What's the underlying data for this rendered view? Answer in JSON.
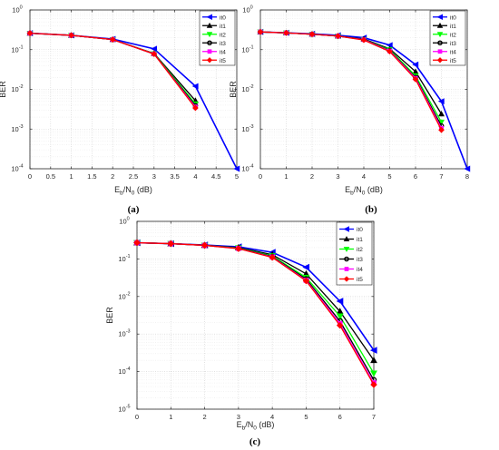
{
  "figure": {
    "panel_labels": [
      "(a)",
      "(b)",
      "(c)"
    ]
  },
  "chart_data": [
    {
      "type": "line",
      "panel": "(a)",
      "title": "",
      "xlabel": "E_b/N_0 (dB)",
      "xlabel_parts": {
        "E": "E",
        "b": "b",
        "slash_N": "/N",
        "zero": "0",
        "unit": " (dB)"
      },
      "ylabel": "BER",
      "xlim": [
        0,
        5
      ],
      "ylim": [
        0.0001,
        1
      ],
      "yscale": "log",
      "xticks": [
        0,
        0.5,
        1,
        1.5,
        2,
        2.5,
        3,
        3.5,
        4,
        4.5,
        5
      ],
      "xtick_labels": [
        "0",
        "0.5",
        "1",
        "1.5",
        "2",
        "2.5",
        "3",
        "3.5",
        "4",
        "4.5",
        "5"
      ],
      "yticks": [
        0.0001,
        0.001,
        0.01,
        0.1,
        1
      ],
      "ytick_labels": [
        {
          "base": "10",
          "exp": "-4"
        },
        {
          "base": "10",
          "exp": "-3"
        },
        {
          "base": "10",
          "exp": "-2"
        },
        {
          "base": "10",
          "exp": "-1"
        },
        {
          "base": "10",
          "exp": "0"
        }
      ],
      "grid": true,
      "legend_position": "top-right",
      "series": [
        {
          "name": "it0",
          "color": "#0000ff",
          "marker": "triangle-left",
          "x": [
            0,
            1,
            2,
            3,
            4,
            5
          ],
          "y": [
            0.26,
            0.23,
            0.185,
            0.105,
            0.012,
            0.0001
          ]
        },
        {
          "name": "it1",
          "color": "#000000",
          "marker": "triangle-up",
          "x": [
            0,
            1,
            2,
            3,
            4
          ],
          "y": [
            0.26,
            0.23,
            0.18,
            0.08,
            0.0052
          ]
        },
        {
          "name": "it2",
          "color": "#00ff00",
          "marker": "triangle-down",
          "x": [
            0,
            1,
            2,
            3,
            4
          ],
          "y": [
            0.26,
            0.23,
            0.18,
            0.079,
            0.0043
          ]
        },
        {
          "name": "it3",
          "color": "#000000",
          "marker": "circle",
          "x": [
            0,
            1,
            2,
            3,
            4
          ],
          "y": [
            0.26,
            0.23,
            0.18,
            0.078,
            0.0039
          ]
        },
        {
          "name": "it4",
          "color": "#ff00ff",
          "marker": "square",
          "x": [
            0,
            1,
            2,
            3,
            4
          ],
          "y": [
            0.26,
            0.23,
            0.18,
            0.078,
            0.0036
          ]
        },
        {
          "name": "it5",
          "color": "#ff0000",
          "marker": "diamond",
          "x": [
            0,
            1,
            2,
            3,
            4
          ],
          "y": [
            0.26,
            0.23,
            0.18,
            0.078,
            0.0034
          ]
        }
      ]
    },
    {
      "type": "line",
      "panel": "(b)",
      "title": "",
      "xlabel": "E_b/N_0 (dB)",
      "xlabel_parts": {
        "E": "E",
        "b": "b",
        "slash_N": "/N",
        "zero": "0",
        "unit": " (dB)"
      },
      "ylabel": "BER",
      "xlim": [
        0,
        8
      ],
      "ylim": [
        0.0001,
        1
      ],
      "yscale": "log",
      "xticks": [
        0,
        1,
        2,
        3,
        4,
        5,
        6,
        7,
        8
      ],
      "xtick_labels": [
        "0",
        "1",
        "2",
        "3",
        "4",
        "5",
        "6",
        "7",
        "8"
      ],
      "yticks": [
        0.0001,
        0.001,
        0.01,
        0.1,
        1
      ],
      "ytick_labels": [
        {
          "base": "10",
          "exp": "-4"
        },
        {
          "base": "10",
          "exp": "-3"
        },
        {
          "base": "10",
          "exp": "-2"
        },
        {
          "base": "10",
          "exp": "-1"
        },
        {
          "base": "10",
          "exp": "0"
        }
      ],
      "grid": true,
      "legend_position": "top-right",
      "series": [
        {
          "name": "it0",
          "color": "#0000ff",
          "marker": "triangle-left",
          "x": [
            0,
            1,
            2,
            3,
            4,
            5,
            6,
            7,
            8
          ],
          "y": [
            0.28,
            0.265,
            0.25,
            0.23,
            0.2,
            0.13,
            0.042,
            0.005,
            0.0001
          ]
        },
        {
          "name": "it1",
          "color": "#000000",
          "marker": "triangle-up",
          "x": [
            0,
            1,
            2,
            3,
            4,
            5,
            6,
            7
          ],
          "y": [
            0.28,
            0.265,
            0.245,
            0.22,
            0.185,
            0.105,
            0.028,
            0.0024
          ]
        },
        {
          "name": "it2",
          "color": "#00ff00",
          "marker": "triangle-down",
          "x": [
            0,
            1,
            2,
            3,
            4,
            5,
            6,
            7
          ],
          "y": [
            0.28,
            0.265,
            0.245,
            0.22,
            0.18,
            0.1,
            0.022,
            0.0015
          ]
        },
        {
          "name": "it3",
          "color": "#000000",
          "marker": "circle",
          "x": [
            0,
            1,
            2,
            3,
            4,
            5,
            6,
            7
          ],
          "y": [
            0.28,
            0.265,
            0.245,
            0.22,
            0.18,
            0.095,
            0.02,
            0.0012
          ]
        },
        {
          "name": "it4",
          "color": "#ff00ff",
          "marker": "square",
          "x": [
            0,
            1,
            2,
            3,
            4,
            5,
            6,
            7
          ],
          "y": [
            0.28,
            0.265,
            0.245,
            0.22,
            0.178,
            0.093,
            0.019,
            0.00105
          ]
        },
        {
          "name": "it5",
          "color": "#ff0000",
          "marker": "diamond",
          "x": [
            0,
            1,
            2,
            3,
            4,
            5,
            6,
            7
          ],
          "y": [
            0.28,
            0.265,
            0.245,
            0.22,
            0.175,
            0.09,
            0.018,
            0.00095
          ]
        }
      ]
    },
    {
      "type": "line",
      "panel": "(c)",
      "title": "",
      "xlabel": "E_b/N_0 (dB)",
      "xlabel_parts": {
        "E": "E",
        "b": "b",
        "slash_N": "/N",
        "zero": "0",
        "unit": " (dB)"
      },
      "ylabel": "BER",
      "xlim": [
        0,
        7
      ],
      "ylim": [
        1e-05,
        1
      ],
      "yscale": "log",
      "xticks": [
        0,
        1,
        2,
        3,
        4,
        5,
        6,
        7
      ],
      "xtick_labels": [
        "0",
        "1",
        "2",
        "3",
        "4",
        "5",
        "6",
        "7"
      ],
      "yticks": [
        1e-05,
        0.0001,
        0.001,
        0.01,
        0.1,
        1
      ],
      "ytick_labels": [
        {
          "base": "10",
          "exp": "-5"
        },
        {
          "base": "10",
          "exp": "-4"
        },
        {
          "base": "10",
          "exp": "-3"
        },
        {
          "base": "10",
          "exp": "-2"
        },
        {
          "base": "10",
          "exp": "-1"
        },
        {
          "base": "10",
          "exp": "0"
        }
      ],
      "grid": true,
      "legend_position": "top-right",
      "series": [
        {
          "name": "it0",
          "color": "#0000ff",
          "marker": "triangle-left",
          "x": [
            0,
            1,
            2,
            3,
            4,
            5,
            6,
            7
          ],
          "y": [
            0.27,
            0.255,
            0.235,
            0.21,
            0.15,
            0.06,
            0.0075,
            0.00037
          ]
        },
        {
          "name": "it1",
          "color": "#000000",
          "marker": "triangle-up",
          "x": [
            0,
            1,
            2,
            3,
            4,
            5,
            6,
            7
          ],
          "y": [
            0.27,
            0.255,
            0.232,
            0.2,
            0.13,
            0.04,
            0.004,
            0.0002
          ]
        },
        {
          "name": "it2",
          "color": "#00ff00",
          "marker": "triangle-down",
          "x": [
            0,
            1,
            2,
            3,
            4,
            5,
            6,
            7
          ],
          "y": [
            0.27,
            0.255,
            0.23,
            0.195,
            0.12,
            0.032,
            0.003,
            9e-05
          ]
        },
        {
          "name": "it3",
          "color": "#000000",
          "marker": "circle",
          "x": [
            0,
            1,
            2,
            3,
            4,
            5,
            6,
            7
          ],
          "y": [
            0.27,
            0.255,
            0.23,
            0.192,
            0.115,
            0.029,
            0.0022,
            6e-05
          ]
        },
        {
          "name": "it4",
          "color": "#ff00ff",
          "marker": "square",
          "x": [
            0,
            1,
            2,
            3,
            4,
            5,
            6,
            7
          ],
          "y": [
            0.27,
            0.255,
            0.23,
            0.19,
            0.112,
            0.027,
            0.0019,
            5e-05
          ]
        },
        {
          "name": "it5",
          "color": "#ff0000",
          "marker": "diamond",
          "x": [
            0,
            1,
            2,
            3,
            4,
            5,
            6,
            7
          ],
          "y": [
            0.27,
            0.255,
            0.23,
            0.188,
            0.11,
            0.026,
            0.0017,
            4.5e-05
          ]
        }
      ]
    }
  ]
}
